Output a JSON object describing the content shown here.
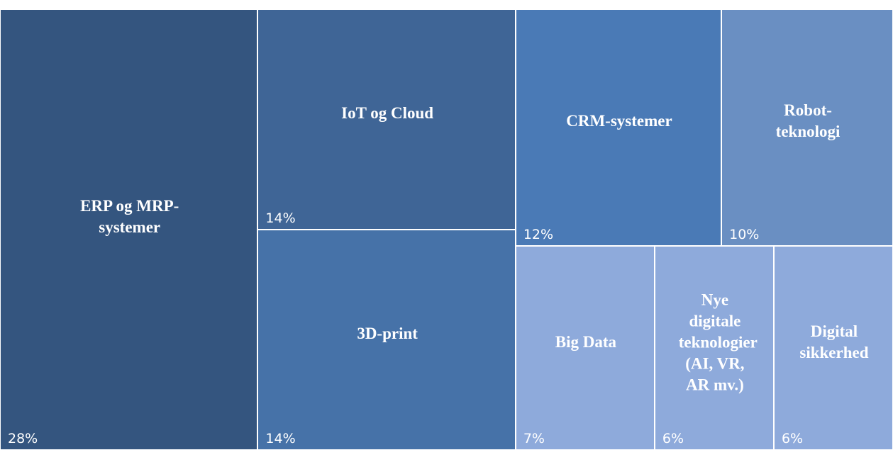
{
  "chart_data": {
    "type": "treemap",
    "categories": [
      "ERP og MRP-systemer",
      "IoT og Cloud",
      "3D-print",
      "CRM-systemer",
      "Robot-teknologi",
      "Big Data",
      "Nye digitale teknologier (AI, VR, AR mv.)",
      "Digital sikkerhed"
    ],
    "values": [
      28,
      14,
      14,
      12,
      10,
      7,
      6,
      6
    ],
    "value_labels": [
      "28%",
      "14%",
      "14%",
      "12%",
      "10%",
      "7%",
      "6%",
      "6%"
    ],
    "colors": [
      "#34557f",
      "#3f6596",
      "#4672a8",
      "#4a7ab6",
      "#6a8fc2",
      "#8eaadb",
      "#8eaadb",
      "#8eaadb"
    ]
  }
}
